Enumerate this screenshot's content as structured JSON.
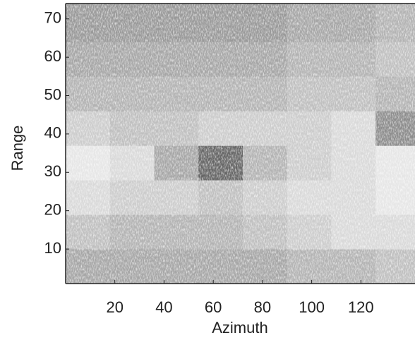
{
  "chart_data": {
    "type": "heatmap",
    "x_label": "Azimuth",
    "y_label": "Range",
    "xbins": [
      0,
      18,
      36,
      54,
      72,
      90,
      108,
      126,
      142
    ],
    "ybins": [
      1,
      10,
      19,
      28,
      37,
      46,
      55,
      64,
      74
    ],
    "z": [
      [
        0.35,
        0.35,
        0.35,
        0.35,
        0.35,
        0.3,
        0.3,
        0.25
      ],
      [
        0.25,
        0.3,
        0.3,
        0.3,
        0.25,
        0.2,
        0.15,
        0.15
      ],
      [
        0.15,
        0.2,
        0.2,
        0.25,
        0.2,
        0.15,
        0.15,
        0.1
      ],
      [
        0.1,
        0.15,
        0.35,
        0.6,
        0.3,
        0.2,
        0.15,
        0.1
      ],
      [
        0.2,
        0.25,
        0.25,
        0.2,
        0.2,
        0.2,
        0.15,
        0.45
      ],
      [
        0.3,
        0.3,
        0.3,
        0.3,
        0.3,
        0.25,
        0.25,
        0.3
      ],
      [
        0.35,
        0.35,
        0.35,
        0.35,
        0.35,
        0.3,
        0.3,
        0.25
      ],
      [
        0.4,
        0.4,
        0.4,
        0.4,
        0.4,
        0.35,
        0.35,
        0.3
      ]
    ],
    "colormap": "gray",
    "xlim": [
      0,
      142
    ],
    "ylim": [
      1,
      74
    ],
    "xticks": [
      20,
      40,
      60,
      80,
      100,
      120
    ],
    "yticks": [
      10,
      20,
      30,
      40,
      50,
      60,
      70
    ]
  }
}
